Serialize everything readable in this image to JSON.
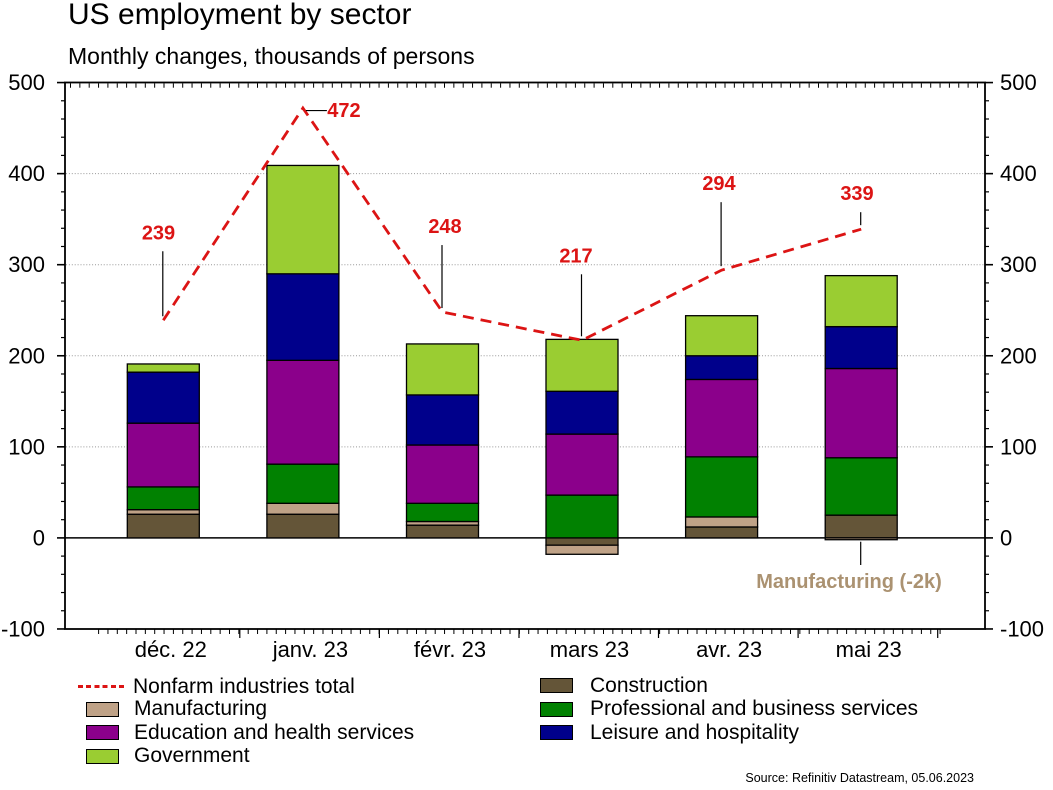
{
  "title": "US employment by sector",
  "subtitle": "Monthly changes, thousands of persons",
  "source": "Source: Refinitiv Datastream, 05.06.2023",
  "annotation": "Manufacturing (-2k)",
  "colors": {
    "red_line": "#DC1414",
    "construction": "#645538",
    "manufacturing": "#BFA287",
    "professional": "#018101",
    "education": "#8B008B",
    "leisure": "#00008B",
    "government": "#9ACD32",
    "annotation_text": "#AB9271",
    "grid": "#999999",
    "axis": "#000000"
  },
  "chart_data": {
    "type": "bar",
    "subtype": "stacked-bars-with-line",
    "categories": [
      "déc. 22",
      "janv. 23",
      "févr. 23",
      "mars 23",
      "avr. 23",
      "mai 23"
    ],
    "series": [
      {
        "name": "Construction",
        "key": "construction",
        "values": [
          26,
          26,
          14,
          -8,
          12,
          25
        ]
      },
      {
        "name": "Manufacturing",
        "key": "manufacturing",
        "values": [
          5,
          12,
          4,
          -10,
          11,
          -2
        ]
      },
      {
        "name": "Professional and business services",
        "key": "professional",
        "values": [
          25,
          43,
          20,
          47,
          66,
          63
        ]
      },
      {
        "name": "Education and health services",
        "key": "education",
        "values": [
          70,
          114,
          64,
          67,
          85,
          98
        ]
      },
      {
        "name": "Leisure and hospitality",
        "key": "leisure",
        "values": [
          56,
          95,
          55,
          47,
          26,
          46
        ]
      },
      {
        "name": "Government",
        "key": "government",
        "values": [
          9,
          119,
          56,
          57,
          44,
          56
        ]
      }
    ],
    "line_series": {
      "name": "Nonfarm industries total",
      "values": [
        239,
        472,
        248,
        217,
        294,
        339
      ]
    },
    "ylim": [
      -100,
      500
    ],
    "yticks": [
      -100,
      0,
      100,
      200,
      300,
      400,
      500
    ],
    "grid": "horizontal dotted at 100-400, solid zero line",
    "legend_position": "bottom, two columns"
  },
  "legend": {
    "left": [
      {
        "label": "Nonfarm industries total",
        "swatch": "dashed-line",
        "color_key": "red_line"
      },
      {
        "label": "Manufacturing",
        "swatch": "box",
        "color_key": "manufacturing"
      },
      {
        "label": "Education and health services",
        "swatch": "box",
        "color_key": "education"
      },
      {
        "label": "Government",
        "swatch": "box",
        "color_key": "government"
      }
    ],
    "right": [
      {
        "label": "Construction",
        "swatch": "box",
        "color_key": "construction"
      },
      {
        "label": "Professional and business services",
        "swatch": "box",
        "color_key": "professional"
      },
      {
        "label": "Leisure and hospitality",
        "swatch": "box",
        "color_key": "leisure"
      }
    ]
  }
}
